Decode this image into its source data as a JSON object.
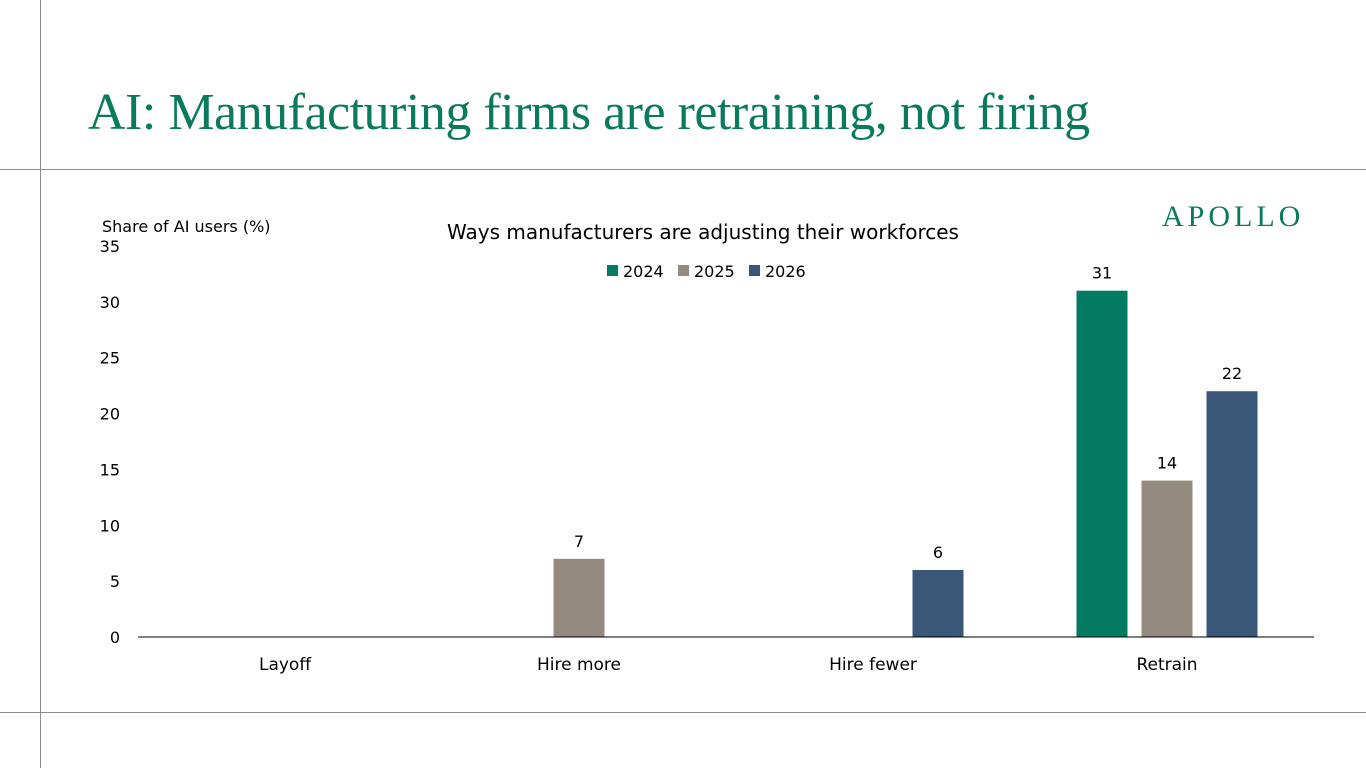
{
  "slide": {
    "title": "AI: Manufacturing firms are retraining, not firing",
    "brand": "APOLLO"
  },
  "colors": {
    "accent": "#0a7a5c",
    "series_2024": "#027b62",
    "series_2025": "#948a7e",
    "series_2026": "#3a5777"
  },
  "chart_data": {
    "type": "bar",
    "title": "Ways manufacturers are adjusting their workforces",
    "ylabel": "Share of AI users (%)",
    "xlabel": "",
    "categories": [
      "Layoff",
      "Hire more",
      "Hire fewer",
      "Retrain"
    ],
    "series": [
      {
        "name": "2024",
        "values": [
          0,
          0,
          0,
          31
        ]
      },
      {
        "name": "2025",
        "values": [
          0,
          7,
          0,
          14
        ]
      },
      {
        "name": "2026",
        "values": [
          0,
          0,
          6,
          22
        ]
      }
    ],
    "ylim": [
      0,
      35
    ],
    "yticks": [
      0,
      5,
      10,
      15,
      20,
      25,
      30,
      35
    ],
    "legend_position": "top-center",
    "grid": false
  }
}
